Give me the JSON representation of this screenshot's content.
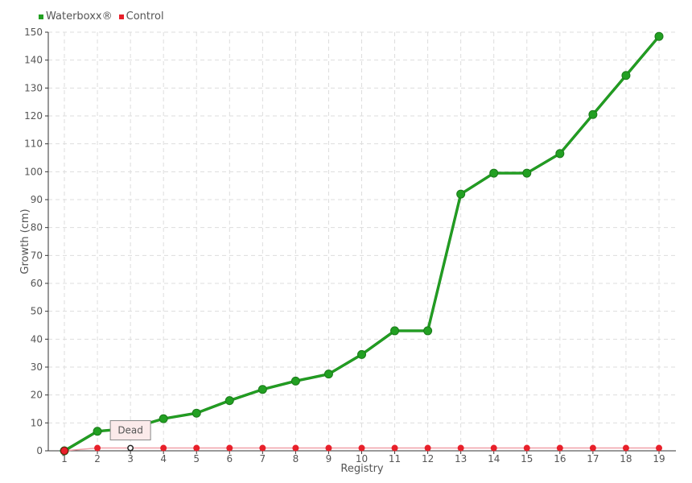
{
  "chart_data": {
    "type": "line",
    "x": [
      1,
      2,
      3,
      4,
      5,
      6,
      7,
      8,
      9,
      10,
      11,
      12,
      13,
      14,
      15,
      16,
      17,
      18,
      19
    ],
    "xlabel": "Registry",
    "ylabel": "Growth (cm)",
    "ylim": [
      0,
      150
    ],
    "yticks": [
      0,
      10,
      20,
      30,
      40,
      50,
      60,
      70,
      80,
      90,
      100,
      110,
      120,
      130,
      140,
      150
    ],
    "grid": true,
    "legend_position": "top-left",
    "series": [
      {
        "name": "Waterboxx®",
        "color": "#22a022",
        "values": [
          0,
          7,
          8,
          11.5,
          13.5,
          18,
          22,
          25,
          27.5,
          34.5,
          43,
          43,
          92,
          99.5,
          99.5,
          106.5,
          120.5,
          134.5,
          148.5
        ]
      },
      {
        "name": "Control",
        "color": "#e8202a",
        "values": [
          0,
          1,
          1,
          1,
          1,
          1,
          1,
          1,
          1,
          1,
          1,
          1,
          1,
          1,
          1,
          1,
          1,
          1,
          1
        ]
      }
    ],
    "annotations": [
      {
        "x": 3,
        "series": "Control",
        "text": "Dead"
      }
    ]
  }
}
